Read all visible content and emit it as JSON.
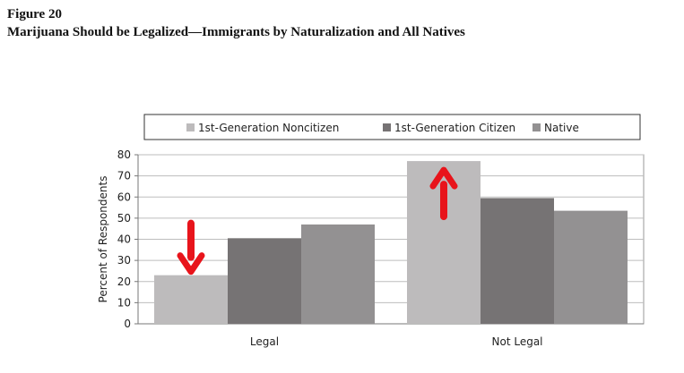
{
  "figure_label": "Figure 20",
  "figure_title": "Marijuana Should be Legalized—Immigrants by Naturalization and All Natives",
  "chart_data": {
    "type": "bar",
    "title": "Marijuana Should be Legalized—Immigrants by Naturalization and All Natives",
    "xlabel": "",
    "ylabel": "Percent of Respondents",
    "categories": [
      "Legal",
      "Not Legal"
    ],
    "series": [
      {
        "name": "1st-Generation Noncitizen",
        "values": [
          23,
          77
        ],
        "color": "#bdbbbc"
      },
      {
        "name": "1st-Generation Citizen",
        "values": [
          40.5,
          59.5
        ],
        "color": "#767374"
      },
      {
        "name": "Native",
        "values": [
          47,
          53.5
        ],
        "color": "#939192"
      }
    ],
    "ylim": [
      0,
      80
    ],
    "yticks": [
      0,
      10,
      20,
      30,
      40,
      50,
      60,
      70,
      80
    ],
    "grid": true,
    "legend_position": "top",
    "annotations": [
      {
        "type": "arrow",
        "direction": "down",
        "category": "Legal",
        "series": "1st-Generation Noncitizen",
        "color": "#e8141b"
      },
      {
        "type": "arrow",
        "direction": "up",
        "category": "Not Legal",
        "series": "1st-Generation Noncitizen",
        "color": "#e8141b"
      }
    ]
  }
}
